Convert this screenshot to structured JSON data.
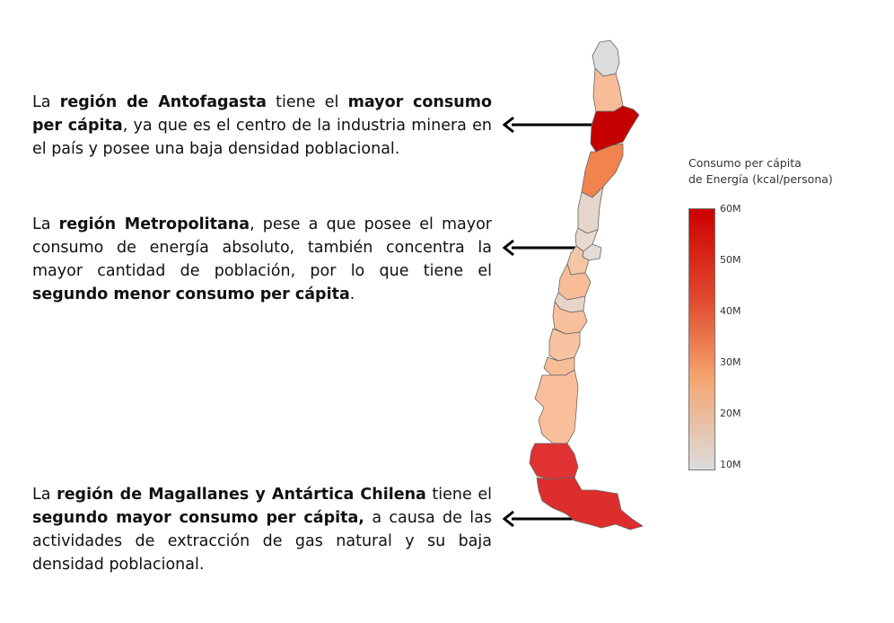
{
  "paragraphs": [
    {
      "id": "antofagasta",
      "segments": [
        {
          "text": "La ",
          "bold": false
        },
        {
          "text": "región de Antofagasta",
          "bold": true
        },
        {
          "text": " tiene el ",
          "bold": false
        },
        {
          "text": "mayor consumo per cápita",
          "bold": true
        },
        {
          "text": ", ya que es el centro de la industria minera en el país y posee una baja densidad poblacional.",
          "bold": false
        }
      ]
    },
    {
      "id": "metropolitana",
      "segments": [
        {
          "text": "La ",
          "bold": false
        },
        {
          "text": "región Metropolitana",
          "bold": true
        },
        {
          "text": ", pese a que posee el mayor consumo de energía absoluto, también concentra la mayor cantidad de población, por lo que tiene el ",
          "bold": false
        },
        {
          "text": "segundo menor consumo per cápita",
          "bold": true
        },
        {
          "text": ".",
          "bold": false
        }
      ]
    },
    {
      "id": "magallanes",
      "segments": [
        {
          "text": "La ",
          "bold": false
        },
        {
          "text": "región de Magallanes y Antártica Chilena",
          "bold": true
        },
        {
          "text": " tiene el ",
          "bold": false
        },
        {
          "text": "segundo mayor consumo per cápita,",
          "bold": true
        },
        {
          "text": " a causa de las actividades de extracción de gas natural y su baja densidad poblacional.",
          "bold": false
        }
      ]
    }
  ],
  "legend": {
    "title_line1": "Consumo per cápita",
    "title_line2": "de Energía (kcal/persona)",
    "ticks": [
      "60M",
      "50M",
      "40M",
      "30M",
      "20M",
      "10M"
    ],
    "color_stops": [
      "#cc0000",
      "#f4a570",
      "#dcdcdc"
    ]
  },
  "map": {
    "region_colors": [
      {
        "name": "Arica y Parinacota",
        "color": "#dcdcdc"
      },
      {
        "name": "Tarapacá",
        "color": "#f8bd98"
      },
      {
        "name": "Antofagasta",
        "color": "#c40000"
      },
      {
        "name": "Atacama",
        "color": "#f2834e"
      },
      {
        "name": "Coquimbo",
        "color": "#e6d5cb"
      },
      {
        "name": "Valparaíso",
        "color": "#e8d8cd"
      },
      {
        "name": "Metropolitana",
        "color": "#e2dcd8"
      },
      {
        "name": "O'Higgins",
        "color": "#f4c6a5"
      },
      {
        "name": "Maule",
        "color": "#f8bd98"
      },
      {
        "name": "Ñuble",
        "color": "#e8d4c6"
      },
      {
        "name": "Biobío",
        "color": "#f8c09c"
      },
      {
        "name": "Araucanía",
        "color": "#f7c3a0"
      },
      {
        "name": "Los Ríos",
        "color": "#f6bd96"
      },
      {
        "name": "Los Lagos",
        "color": "#f9bf9b"
      },
      {
        "name": "Aysén",
        "color": "#e03232"
      },
      {
        "name": "Magallanes",
        "color": "#dd2d2d"
      }
    ]
  }
}
